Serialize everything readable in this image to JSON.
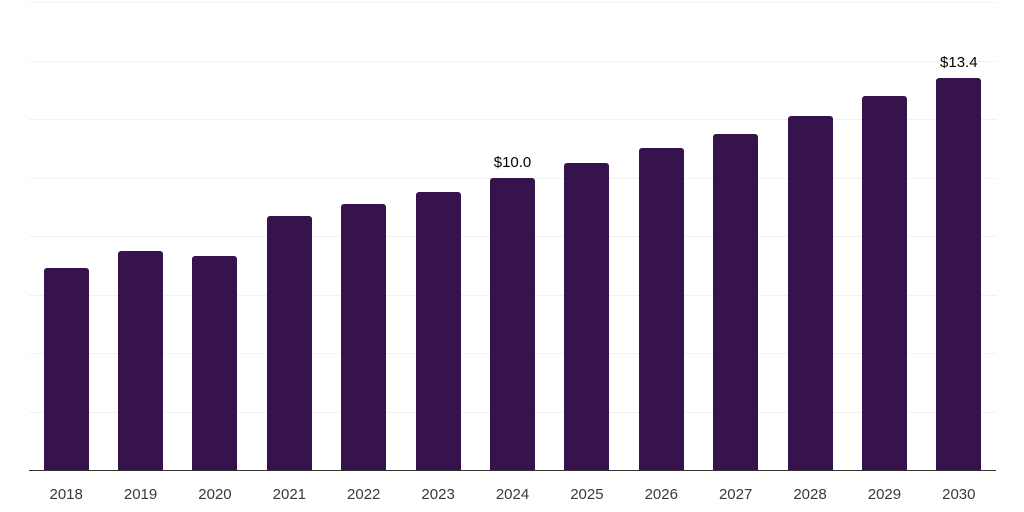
{
  "chart_data": {
    "type": "bar",
    "title": "",
    "xlabel": "",
    "ylabel": "",
    "categories": [
      "2018",
      "2019",
      "2020",
      "2021",
      "2022",
      "2023",
      "2024",
      "2025",
      "2026",
      "2027",
      "2028",
      "2029",
      "2030"
    ],
    "values": [
      6.9,
      7.5,
      7.3,
      8.7,
      9.1,
      9.5,
      10.0,
      10.5,
      11.0,
      11.5,
      12.1,
      12.8,
      13.4
    ],
    "data_labels": [
      {
        "category": "2024",
        "text": "$10.0"
      },
      {
        "category": "2030",
        "text": "$13.4"
      }
    ],
    "ylim": [
      0,
      16
    ],
    "gridline_step": 2,
    "grid": true,
    "legend_position": "none",
    "y_axis_labels_visible": false,
    "colors": {
      "bar": "#36134C",
      "gridline": "#f2f2f2",
      "axis_line": "#333333",
      "tick_label": "#3a3a3a",
      "data_label": "#000000",
      "background": "#ffffff"
    }
  }
}
